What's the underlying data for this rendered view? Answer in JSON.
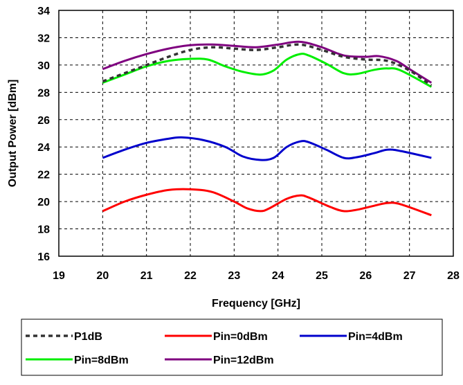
{
  "chart_data": {
    "type": "line",
    "title": "",
    "xlabel": "Frequency [GHz]",
    "ylabel": "Output Power [dBm]",
    "xlim": [
      19,
      28
    ],
    "ylim": [
      16,
      34
    ],
    "x_ticks": [
      "19",
      "20",
      "21",
      "22",
      "23",
      "24",
      "25",
      "26",
      "27",
      "28"
    ],
    "y_ticks": [
      "16",
      "18",
      "20",
      "22",
      "24",
      "26",
      "28",
      "30",
      "32",
      "34"
    ],
    "grid": "dashed",
    "legend_position": "bottom",
    "series": [
      {
        "name": "P1dB",
        "color": "#333333",
        "style": "dotted",
        "x": [
          20,
          20.5,
          21,
          21.5,
          22,
          22.5,
          23,
          23.5,
          24,
          24.5,
          25,
          25.5,
          26,
          26.5,
          27,
          27.5
        ],
        "y": [
          28.8,
          29.4,
          30.0,
          30.6,
          31.1,
          31.3,
          31.2,
          31.1,
          31.3,
          31.5,
          31.1,
          30.6,
          30.4,
          30.3,
          29.6,
          28.5
        ]
      },
      {
        "name": "Pin=0dBm",
        "color": "#ff0000",
        "style": "solid",
        "x": [
          20,
          20.5,
          21,
          21.5,
          22,
          22.5,
          23,
          23.3,
          23.6,
          23.8,
          24.2,
          24.5,
          24.7,
          25.2,
          25.5,
          25.8,
          26.2,
          26.5,
          26.8,
          27.5
        ],
        "y": [
          19.3,
          20.0,
          20.5,
          20.85,
          20.9,
          20.7,
          20.0,
          19.5,
          19.3,
          19.5,
          20.2,
          20.45,
          20.3,
          19.6,
          19.3,
          19.4,
          19.7,
          19.9,
          19.8,
          19.0
        ]
      },
      {
        "name": "Pin=4dBm",
        "color": "#0000cc",
        "style": "solid",
        "x": [
          20,
          20.5,
          21,
          21.5,
          21.8,
          22.3,
          22.8,
          23.2,
          23.6,
          23.9,
          24.2,
          24.5,
          24.7,
          25.1,
          25.5,
          25.8,
          26.2,
          26.5,
          26.8,
          27.5
        ],
        "y": [
          23.2,
          23.8,
          24.3,
          24.6,
          24.7,
          24.5,
          24.0,
          23.3,
          23.05,
          23.2,
          24.0,
          24.4,
          24.35,
          23.8,
          23.2,
          23.25,
          23.55,
          23.8,
          23.7,
          23.2
        ]
      },
      {
        "name": "Pin=8dBm",
        "color": "#00ee00",
        "style": "solid",
        "x": [
          20,
          20.5,
          21,
          21.5,
          22,
          22.4,
          22.8,
          23.2,
          23.6,
          23.9,
          24.2,
          24.5,
          24.7,
          25.1,
          25.5,
          25.8,
          26.2,
          26.5,
          26.8,
          27.5
        ],
        "y": [
          28.7,
          29.3,
          29.9,
          30.3,
          30.45,
          30.4,
          29.9,
          29.5,
          29.3,
          29.6,
          30.4,
          30.8,
          30.7,
          30.1,
          29.4,
          29.35,
          29.65,
          29.75,
          29.6,
          28.4
        ]
      },
      {
        "name": "Pin=12dBm",
        "color": "#7f007f",
        "style": "solid",
        "x": [
          20,
          20.5,
          21,
          21.5,
          22,
          22.5,
          23,
          23.5,
          24,
          24.5,
          25,
          25.5,
          26,
          26.3,
          26.7,
          27,
          27.5
        ],
        "y": [
          29.7,
          30.3,
          30.8,
          31.2,
          31.45,
          31.5,
          31.4,
          31.3,
          31.5,
          31.7,
          31.3,
          30.7,
          30.6,
          30.65,
          30.3,
          29.7,
          28.7
        ]
      }
    ]
  }
}
